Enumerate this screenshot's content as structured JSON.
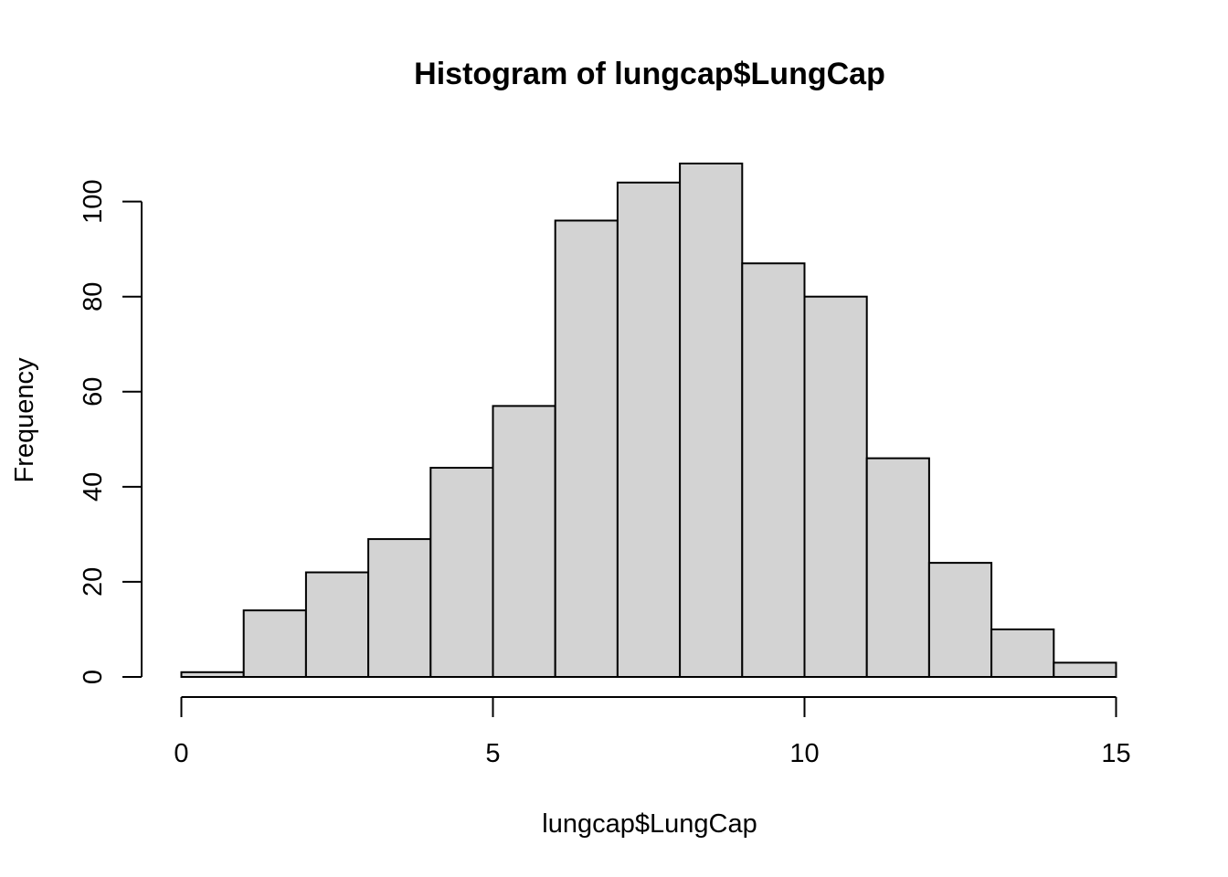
{
  "chart_data": {
    "type": "bar",
    "title": "Histogram of lungcap$LungCap",
    "xlabel": "lungcap$LungCap",
    "ylabel": "Frequency",
    "bins": [
      {
        "from": 0,
        "to": 1,
        "count": 1
      },
      {
        "from": 1,
        "to": 2,
        "count": 14
      },
      {
        "from": 2,
        "to": 3,
        "count": 22
      },
      {
        "from": 3,
        "to": 4,
        "count": 29
      },
      {
        "from": 4,
        "to": 5,
        "count": 44
      },
      {
        "from": 5,
        "to": 6,
        "count": 57
      },
      {
        "from": 6,
        "to": 7,
        "count": 96
      },
      {
        "from": 7,
        "to": 8,
        "count": 104
      },
      {
        "from": 8,
        "to": 9,
        "count": 108
      },
      {
        "from": 9,
        "to": 10,
        "count": 87
      },
      {
        "from": 10,
        "to": 11,
        "count": 80
      },
      {
        "from": 11,
        "to": 12,
        "count": 46
      },
      {
        "from": 12,
        "to": 13,
        "count": 24
      },
      {
        "from": 13,
        "to": 14,
        "count": 10
      },
      {
        "from": 14,
        "to": 15,
        "count": 3
      }
    ],
    "xlim": [
      0,
      15
    ],
    "ylim": [
      0,
      108
    ],
    "x_ticks": [
      0,
      5,
      10,
      15
    ],
    "y_ticks": [
      0,
      20,
      40,
      60,
      80,
      100
    ],
    "x_tick_labels": [
      "0",
      "5",
      "10",
      "15"
    ],
    "y_tick_labels": [
      "0",
      "20",
      "40",
      "60",
      "80",
      "100"
    ],
    "bar_color": "#d3d3d3",
    "edge_color": "#000000",
    "grid": false
  }
}
